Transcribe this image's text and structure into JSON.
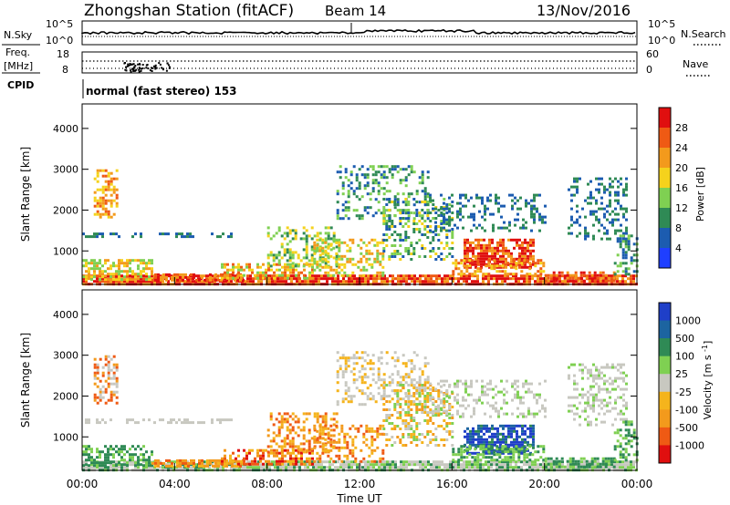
{
  "header": {
    "station": "Zhongshan Station (fitACF)",
    "beam": "Beam 14",
    "date": "13/Nov/2016"
  },
  "top_panels": {
    "nsky_label": "N.Sky",
    "nsearch_label": "N.Search",
    "nsky_ticks": [
      "10^5",
      "10^0"
    ],
    "nsearch_ticks": [
      "10^5",
      "10^0"
    ],
    "freq_label": "Freq.",
    "freq_unit": "[MHz]",
    "freq_ticks": [
      "18",
      "8"
    ],
    "nave_label": "Nave",
    "nave_ticks": [
      "60",
      "0"
    ],
    "cpid_label": "CPID",
    "cpid_text": "normal (fast stereo) 153"
  },
  "chart_data": [
    {
      "type": "heatmap",
      "name": "power",
      "ylabel": "Slant Range [km]",
      "xlabel": "",
      "yticks": [
        "1000",
        "2000",
        "3000",
        "4000"
      ],
      "ylim": [
        180,
        4600
      ],
      "xlim": [
        0,
        24
      ],
      "colorbar": {
        "label": "Power [dB]",
        "ticks": [
          "4",
          "8",
          "12",
          "16",
          "20",
          "24",
          "28"
        ],
        "colors": [
          "#1f3fff",
          "#1c5cb0",
          "#2f8a55",
          "#7fd052",
          "#f5d21c",
          "#f39a1c",
          "#ef5a14",
          "#e00f0f"
        ]
      }
    },
    {
      "type": "heatmap",
      "name": "velocity",
      "ylabel": "Slant Range [km]",
      "xlabel": "Time UT",
      "yticks": [
        "1000",
        "2000",
        "3000",
        "4000"
      ],
      "xticks": [
        "00:00",
        "04:00",
        "08:00",
        "12:00",
        "16:00",
        "20:00",
        "00:00"
      ],
      "ylim": [
        180,
        4600
      ],
      "xlim": [
        0,
        24
      ],
      "colorbar": {
        "label": "Velocity [m s^-1]",
        "ticks": [
          "1000",
          "500",
          "100",
          "25",
          "-25",
          "-100",
          "-500",
          "-1000"
        ],
        "colors": [
          "#1f3fc8",
          "#1c64a0",
          "#2f8a55",
          "#7fd052",
          "#c8c8c0",
          "#f5b41c",
          "#f39a1c",
          "#ef5a14",
          "#e00f0f"
        ]
      }
    }
  ]
}
